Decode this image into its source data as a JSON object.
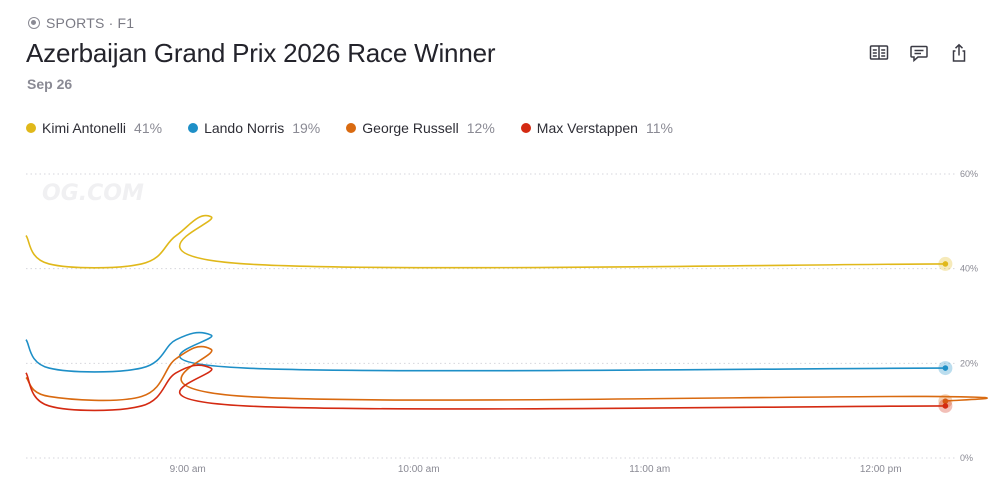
{
  "breadcrumb": {
    "icon": "sports-icon",
    "text": "SPORTS · F1"
  },
  "header": {
    "title": "Azerbaijan Grand Prix 2026 Race Winner",
    "date": "Sep 26"
  },
  "actions": [
    {
      "name": "rules-button",
      "icon": "book-icon"
    },
    {
      "name": "comments-button",
      "icon": "comment-icon"
    },
    {
      "name": "share-button",
      "icon": "share-icon"
    }
  ],
  "watermark": "OG.COM",
  "legend": [
    {
      "name": "Kimi Antonelli",
      "pct": "41%",
      "color": "#e0b81a"
    },
    {
      "name": "Lando Norris",
      "pct": "19%",
      "color": "#1e8fc7"
    },
    {
      "name": "George Russell",
      "pct": "12%",
      "color": "#d96a10"
    },
    {
      "name": "Max Verstappen",
      "pct": "11%",
      "color": "#d42a12"
    }
  ],
  "chart_data": {
    "type": "line",
    "x_range_hours": [
      8.3,
      12.3
    ],
    "ylim": [
      0,
      60
    ],
    "y_ticks": [
      {
        "value": 60,
        "label": "60%"
      },
      {
        "value": 40,
        "label": "40%"
      },
      {
        "value": 20,
        "label": "20%"
      },
      {
        "value": 0,
        "label": "0%"
      }
    ],
    "x_ticks": [
      {
        "value": 9.0,
        "label": "9:00 am"
      },
      {
        "value": 10.0,
        "label": "10:00 am"
      },
      {
        "value": 11.0,
        "label": "11:00 am"
      },
      {
        "value": 12.0,
        "label": "12:00 pm"
      }
    ],
    "grid": "dotted-horizontal",
    "series": [
      {
        "name": "Kimi Antonelli",
        "color": "#e0b81a",
        "points": [
          [
            8.3,
            47
          ],
          [
            8.4,
            41
          ],
          [
            8.8,
            41
          ],
          [
            8.95,
            47
          ],
          [
            9.1,
            51
          ],
          [
            9.25,
            41
          ],
          [
            12.28,
            41
          ]
        ]
      },
      {
        "name": "Lando Norris",
        "color": "#1e8fc7",
        "points": [
          [
            8.3,
            25
          ],
          [
            8.4,
            19
          ],
          [
            8.8,
            19
          ],
          [
            8.95,
            25
          ],
          [
            9.1,
            26
          ],
          [
            9.25,
            19
          ],
          [
            12.28,
            19
          ]
        ]
      },
      {
        "name": "George Russell",
        "color": "#d96a10",
        "points": [
          [
            8.3,
            17
          ],
          [
            8.4,
            13
          ],
          [
            8.8,
            13
          ],
          [
            8.95,
            21
          ],
          [
            9.1,
            23
          ],
          [
            9.25,
            13
          ],
          [
            12.2,
            13
          ],
          [
            12.28,
            12
          ]
        ]
      },
      {
        "name": "Max Verstappen",
        "color": "#d42a12",
        "points": [
          [
            8.3,
            18
          ],
          [
            8.4,
            11
          ],
          [
            8.8,
            11
          ],
          [
            8.95,
            18
          ],
          [
            9.1,
            19
          ],
          [
            9.25,
            11
          ],
          [
            12.28,
            11
          ]
        ]
      }
    ]
  }
}
